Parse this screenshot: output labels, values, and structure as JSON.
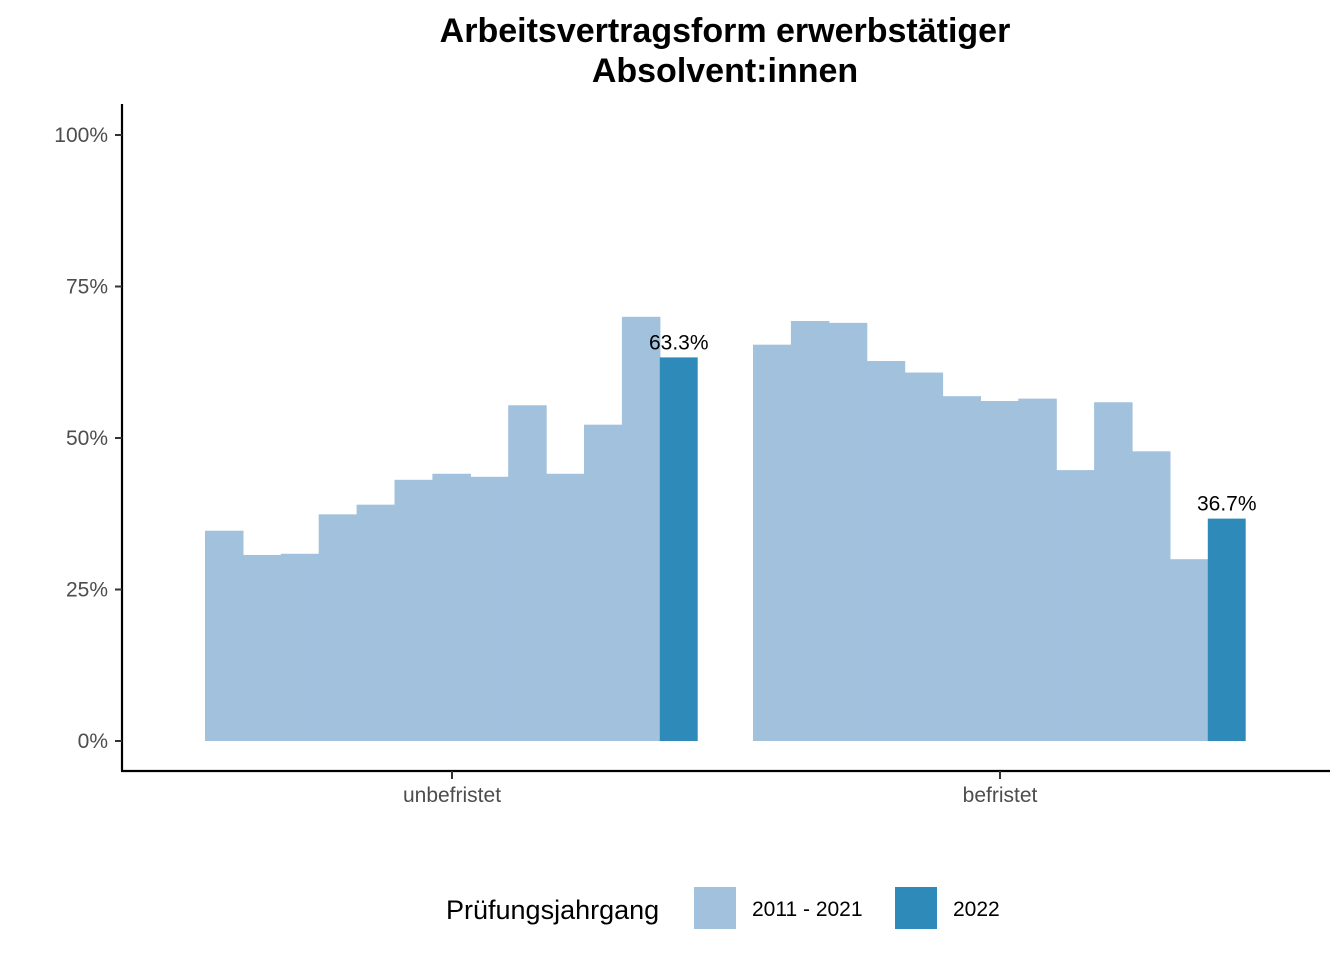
{
  "chart_data": {
    "type": "bar",
    "title_lines": [
      "Arbeitsvertragsform erwerbstätiger",
      "Absolvent:innen"
    ],
    "xlabel": "",
    "ylabel": "",
    "ylim": [
      0,
      1.0
    ],
    "y_ticks": [
      {
        "value": 0,
        "label": "0%"
      },
      {
        "value": 0.25,
        "label": "25%"
      },
      {
        "value": 0.5,
        "label": "50%"
      },
      {
        "value": 0.75,
        "label": "75%"
      },
      {
        "value": 1.0,
        "label": "100%"
      }
    ],
    "categories": [
      "unbefristet",
      "befristet"
    ],
    "groups": [
      {
        "category": "unbefristet",
        "history_values": [
          0.347,
          0.307,
          0.309,
          0.374,
          0.39,
          0.431,
          0.441,
          0.436,
          0.554,
          0.441,
          0.522,
          0.7
        ],
        "current_value": 0.633,
        "current_label": "63.3%"
      },
      {
        "category": "befristet",
        "history_values": [
          0.654,
          0.693,
          0.69,
          0.627,
          0.608,
          0.569,
          0.561,
          0.565,
          0.447,
          0.559,
          0.478,
          0.3
        ],
        "current_value": 0.367,
        "current_label": "36.7%"
      }
    ],
    "series": [
      {
        "name": "2011 - 2021",
        "color": "#a1c1dd"
      },
      {
        "name": "2022",
        "color": "#2e8ab8"
      }
    ],
    "legend": {
      "title": "Prüfungsjahrgang",
      "position": "bottom"
    },
    "grid": false
  }
}
